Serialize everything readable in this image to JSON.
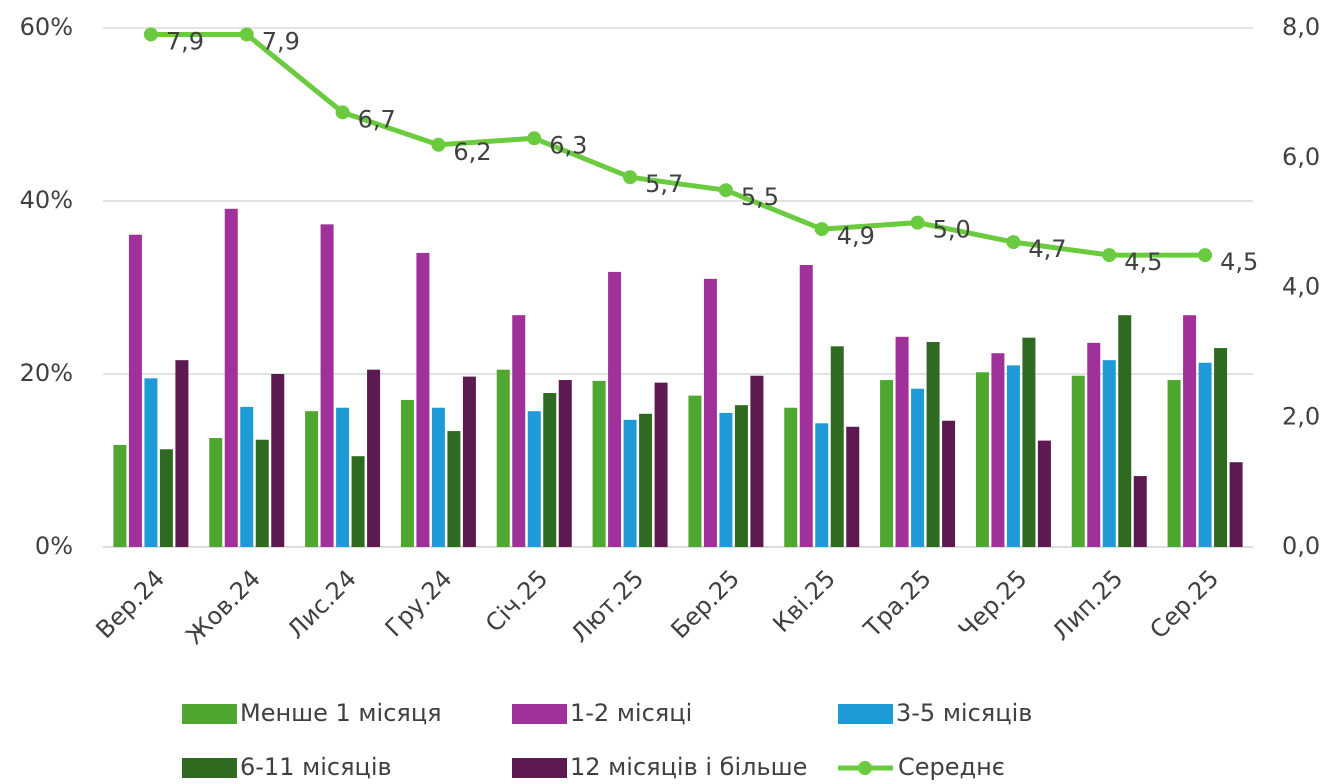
{
  "chart_data": {
    "type": "bar",
    "categories": [
      "Вер.24",
      "Жов.24",
      "Лис.24",
      "Гру.24",
      "Січ.25",
      "Лют.25",
      "Бер.25",
      "Кві.25",
      "Тра.25",
      "Чер.25",
      "Лип.25",
      "Сер.25"
    ],
    "series": [
      {
        "name": "Менше 1 місяця",
        "color": "#4ea72e",
        "values": [
          11.8,
          12.6,
          15.7,
          17.0,
          20.5,
          19.2,
          17.5,
          16.1,
          19.3,
          20.2,
          19.8,
          19.3
        ]
      },
      {
        "name": "1-2 місяці",
        "color": "#a0309a",
        "values": [
          36.1,
          39.1,
          37.3,
          34.0,
          26.8,
          31.8,
          31.0,
          32.6,
          24.3,
          22.4,
          23.6,
          26.8
        ]
      },
      {
        "name": "3-5 місяців",
        "color": "#1e9bd7",
        "values": [
          19.5,
          16.2,
          16.1,
          16.1,
          15.7,
          14.7,
          15.5,
          14.3,
          18.3,
          21.0,
          21.6,
          21.3
        ]
      },
      {
        "name": "6-11 місяців",
        "color": "#2f6a21",
        "values": [
          11.3,
          12.4,
          10.5,
          13.4,
          17.8,
          15.4,
          16.4,
          23.2,
          23.7,
          24.2,
          26.8,
          23.0
        ]
      },
      {
        "name": "12 місяців і більше",
        "color": "#5c1a50",
        "values": [
          21.6,
          20.0,
          20.5,
          19.7,
          19.3,
          19.0,
          19.8,
          13.9,
          14.6,
          12.3,
          8.2,
          9.8
        ]
      },
      {
        "name": "Середнє",
        "type": "line",
        "axis": "y2",
        "color": "#6acb3f",
        "values": [
          7.9,
          7.9,
          6.7,
          6.2,
          6.3,
          5.7,
          5.5,
          4.9,
          5.0,
          4.7,
          4.5,
          4.5
        ],
        "value_labels": [
          "7,9",
          "7,9",
          "6,7",
          "6,2",
          "6,3",
          "5,7",
          "5,5",
          "4,9",
          "5,0",
          "4,7",
          "4,5",
          "4,5"
        ]
      }
    ],
    "ylim": [
      0,
      60
    ],
    "yticks": [
      {
        "value": 0,
        "label": "0%"
      },
      {
        "value": 20,
        "label": "20%"
      },
      {
        "value": 40,
        "label": "40%"
      },
      {
        "value": 60,
        "label": "60%"
      }
    ],
    "y2lim": [
      0,
      8
    ],
    "y2ticks": [
      {
        "value": 0,
        "label": "0,0"
      },
      {
        "value": 2,
        "label": "2,0"
      },
      {
        "value": 4,
        "label": "4,0"
      },
      {
        "value": 6,
        "label": "6,0"
      },
      {
        "value": 8,
        "label": "8,0"
      }
    ],
    "grid": true,
    "legend": "bottom"
  }
}
